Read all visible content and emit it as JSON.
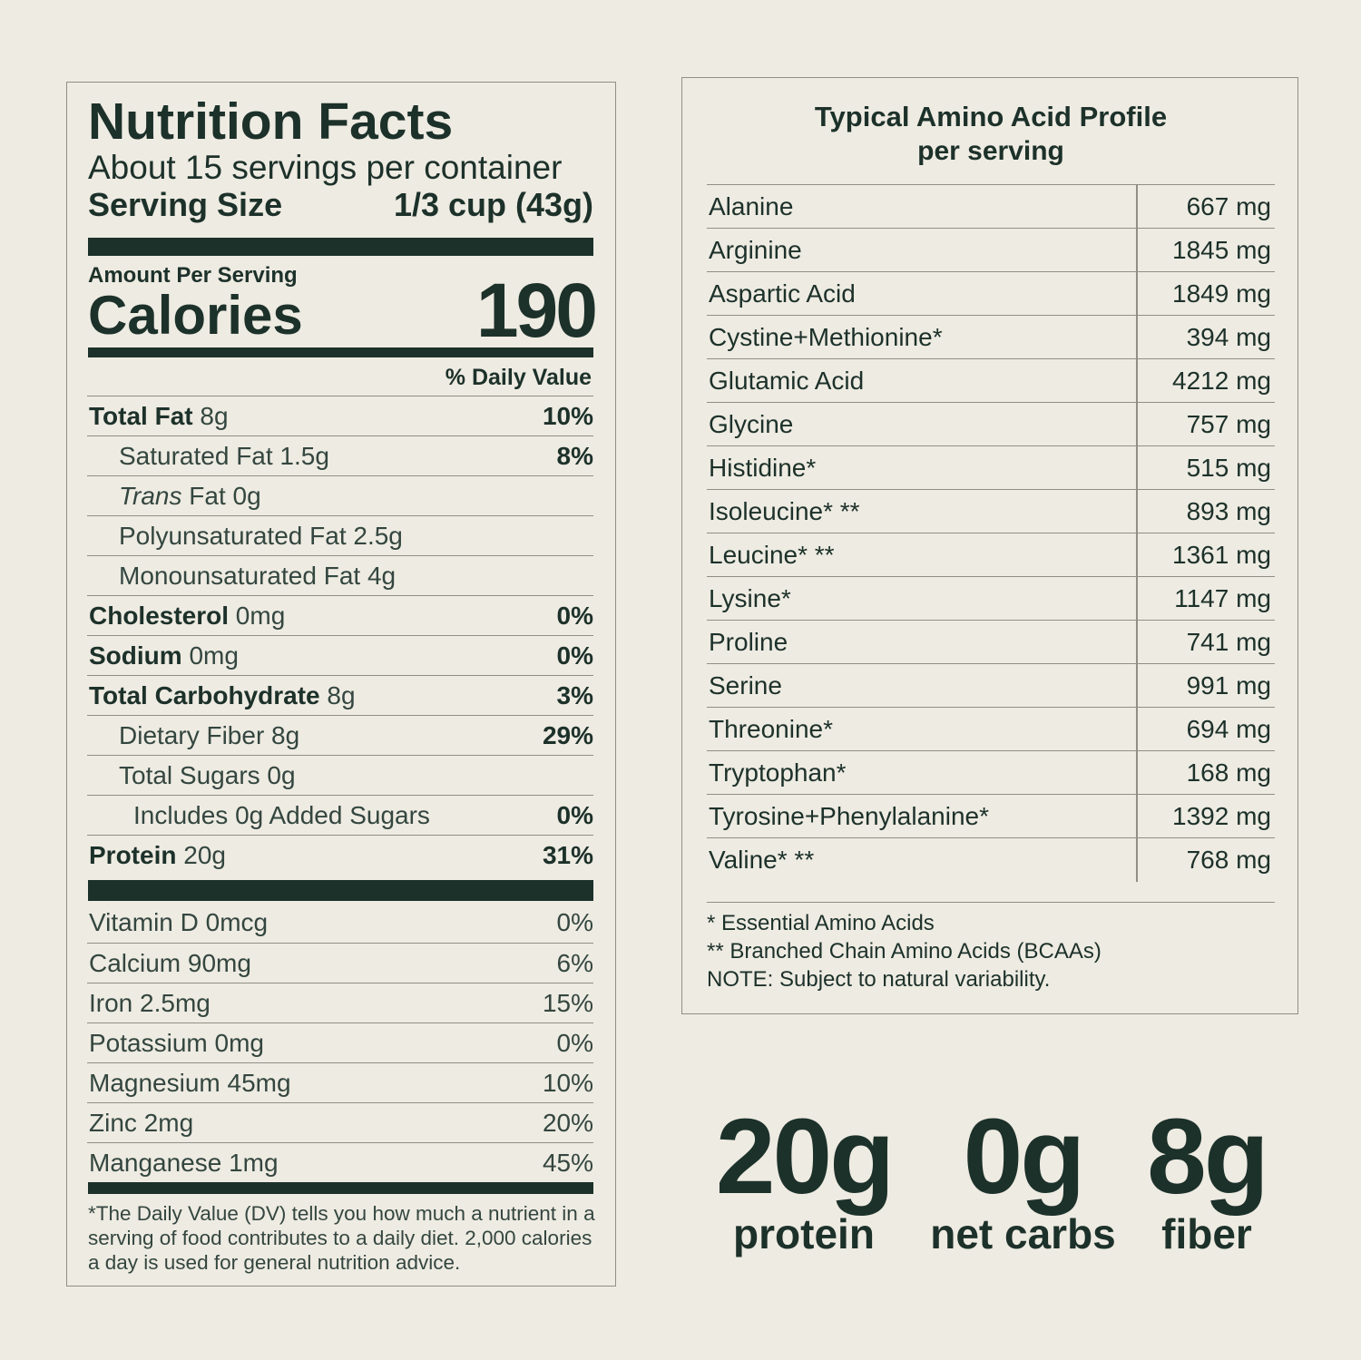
{
  "nutrition_facts": {
    "title": "Nutrition Facts",
    "servings": "About 15 servings per container",
    "serving_size_label": "Serving Size",
    "serving_size_value": "1/3 cup (43g)",
    "amount_per_serving": "Amount Per Serving",
    "calories_label": "Calories",
    "calories_value": "190",
    "daily_value_header": "% Daily Value",
    "nutrients": [
      {
        "name": "Total Fat",
        "amount": " 8g",
        "dv": "10%",
        "bold": true,
        "indent": 0
      },
      {
        "name": "Saturated Fat 1.5g",
        "amount": "",
        "dv": "8%",
        "bold": false,
        "indent": 1
      },
      {
        "name": "Trans",
        "amount": " Fat 0g",
        "dv": "",
        "bold": false,
        "indent": 1,
        "italic": true
      },
      {
        "name": "Polyunsaturated Fat 2.5g",
        "amount": "",
        "dv": "",
        "bold": false,
        "indent": 1
      },
      {
        "name": "Monounsaturated Fat 4g",
        "amount": "",
        "dv": "",
        "bold": false,
        "indent": 1
      },
      {
        "name": "Cholesterol",
        "amount": " 0mg",
        "dv": "0%",
        "bold": true,
        "indent": 0
      },
      {
        "name": "Sodium",
        "amount": " 0mg",
        "dv": "0%",
        "bold": true,
        "indent": 0
      },
      {
        "name": "Total Carbohydrate",
        "amount": " 8g",
        "dv": "3%",
        "bold": true,
        "indent": 0
      },
      {
        "name": "Dietary Fiber 8g",
        "amount": "",
        "dv": "29%",
        "bold": false,
        "indent": 1
      },
      {
        "name": "Total Sugars 0g",
        "amount": "",
        "dv": "",
        "bold": false,
        "indent": 1
      },
      {
        "name": "Includes 0g Added Sugars",
        "amount": "",
        "dv": "0%",
        "bold": false,
        "indent": 2
      },
      {
        "name": "Protein",
        "amount": " 20g",
        "dv": "31%",
        "bold": true,
        "indent": 0
      }
    ],
    "micronutrients": [
      {
        "name": "Vitamin D 0mcg",
        "dv": "0%"
      },
      {
        "name": "Calcium 90mg",
        "dv": "6%"
      },
      {
        "name": "Iron 2.5mg",
        "dv": "15%"
      },
      {
        "name": "Potassium 0mg",
        "dv": "0%"
      },
      {
        "name": "Magnesium 45mg",
        "dv": "10%"
      },
      {
        "name": "Zinc 2mg",
        "dv": "20%"
      },
      {
        "name": "Manganese 1mg",
        "dv": "45%"
      }
    ],
    "footnote": "*The Daily Value (DV) tells you how much a nutrient in a serving of food contributes to a daily diet. 2,000 calories a day is used for general nutrition advice."
  },
  "amino_profile": {
    "title": "Typical Amino Acid Profile",
    "subtitle": "per serving",
    "rows": [
      {
        "name": "Alanine",
        "value": "667 mg"
      },
      {
        "name": "Arginine",
        "value": "1845 mg"
      },
      {
        "name": "Aspartic Acid",
        "value": "1849 mg"
      },
      {
        "name": "Cystine+Methionine*",
        "value": "394 mg"
      },
      {
        "name": "Glutamic Acid",
        "value": "4212 mg"
      },
      {
        "name": "Glycine",
        "value": "757 mg"
      },
      {
        "name": "Histidine*",
        "value": "515 mg"
      },
      {
        "name": "Isoleucine* **",
        "value": "893 mg"
      },
      {
        "name": "Leucine* **",
        "value": "1361 mg"
      },
      {
        "name": "Lysine*",
        "value": "1147 mg"
      },
      {
        "name": "Proline",
        "value": "741 mg"
      },
      {
        "name": "Serine",
        "value": "991 mg"
      },
      {
        "name": "Threonine*",
        "value": "694 mg"
      },
      {
        "name": "Tryptophan*",
        "value": "168 mg"
      },
      {
        "name": "Tyrosine+Phenylalanine*",
        "value": "1392 mg"
      },
      {
        "name": "Valine* **",
        "value": "768 mg"
      }
    ],
    "notes": [
      "* Essential Amino Acids",
      "** Branched Chain Amino Acids (BCAAs)",
      "NOTE: Subject to natural variability."
    ]
  },
  "highlights": [
    {
      "value": "20g",
      "label": "protein"
    },
    {
      "value": "0g",
      "label": "net carbs"
    },
    {
      "value": "8g",
      "label": "fiber"
    }
  ],
  "colors": {
    "background": "#eeebe2",
    "ink": "#1c312a",
    "rule": "#8f8f86"
  }
}
